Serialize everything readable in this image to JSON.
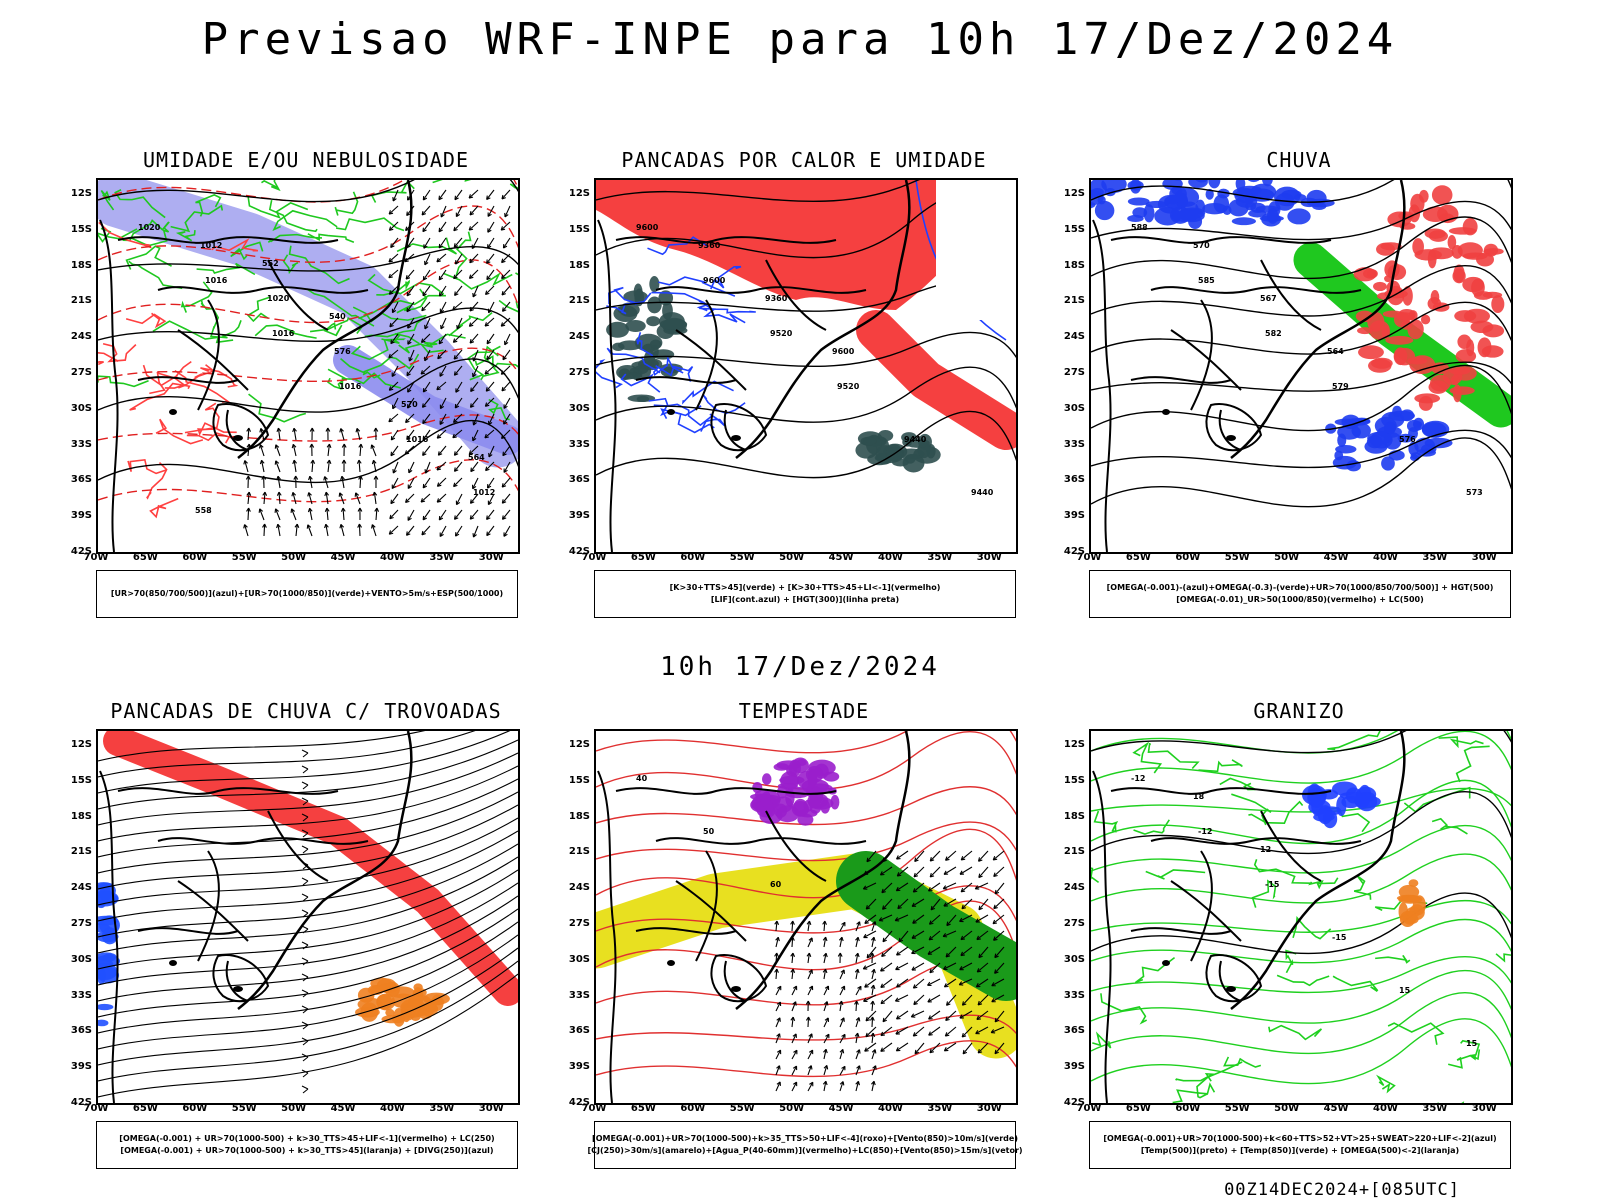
{
  "title": "Previsao WRF-INPE  para 10h 17/Dez/2024",
  "subtitle": "10h 17/Dez/2024",
  "footer": "00Z14DEC2024+[085UTC]",
  "axes": {
    "lat_labels": [
      "12S",
      "15S",
      "18S",
      "21S",
      "24S",
      "27S",
      "30S",
      "33S",
      "36S",
      "39S",
      "42S"
    ],
    "lon_labels": [
      "70W",
      "65W",
      "60W",
      "55W",
      "50W",
      "45W",
      "40W",
      "35W",
      "30W"
    ]
  },
  "panels": [
    {
      "id": "umidade",
      "title": "UMIDADE E/OU NEBULOSIDADE",
      "legend": [
        "[UR>70(850/700/500)](azul)+[UR>70(1000/850)](verde)+VENTO>5m/s+ESP(500/1000)"
      ],
      "fields": [
        "blue",
        "green",
        "redlines",
        "vectors"
      ],
      "contour_values": [
        "1020",
        "1016",
        "1016",
        "1016",
        "1016",
        "1012",
        "1012",
        "1020",
        "576",
        "570",
        "564",
        "558",
        "552",
        "540"
      ]
    },
    {
      "id": "pancadas-calor",
      "title": "PANCADAS POR CALOR E UMIDADE",
      "legend": [
        "[K>30+TTS>45](verde) + [K>30+TTS>45+LI<-1](vermelho)",
        "[LIF](cont.azul) + [HGT(300)](linha preta)"
      ],
      "fields": [
        "redfill",
        "darkgreen",
        "bluelines",
        "blacklines"
      ],
      "contour_values": [
        "9600",
        "9600",
        "9520",
        "9520",
        "9440",
        "9440",
        "9360",
        "9360",
        "9600"
      ]
    },
    {
      "id": "chuva",
      "title": "CHUVA",
      "legend": [
        "[OMEGA(-0.001)-(azul)+OMEGA(-0.3)-(verde)+UR>70(1000/850/700/500)] + HGT(500)",
        "[OMEGA(-0.01)_UR>50(1000/850)(vermelho) + LC(500)"
      ],
      "fields": [
        "blue",
        "green",
        "redfill",
        "blacklines"
      ],
      "contour_values": [
        "588",
        "585",
        "582",
        "579",
        "576",
        "573",
        "570",
        "567",
        "564"
      ]
    },
    {
      "id": "pancadas-trovoadas",
      "title": "PANCADAS DE CHUVA C/ TROVOADAS",
      "legend": [
        "[OMEGA(-0.001) + UR>70(1000-500) + k>30_TTS>45+LIF<-1](vermelho) + LC(250)",
        "[OMEGA(-0.001) + UR>70(1000-500) + k>30_TTS>45](laranja) + [DIVG(250)](azul)"
      ],
      "fields": [
        "redfill",
        "orange",
        "blue",
        "streamlines"
      ],
      "contour_values": []
    },
    {
      "id": "tempestade",
      "title": "TEMPESTADE",
      "legend": [
        "[OMEGA(-0.001)+UR>70(1000-500)+k>35_TTS>50+LIF<-4](roxo)+[Vento(850)>10m/s](verde)",
        "[CJ(250)>30m/s](amarelo)+[Agua_P(40-60mm)](vermelho)+LC(850)+[Vento(850)>15m/s](vetor)"
      ],
      "fields": [
        "yellow",
        "redlines",
        "purple",
        "green",
        "vectors"
      ],
      "contour_values": [
        "40",
        "50",
        "60"
      ]
    },
    {
      "id": "granizo",
      "title": "GRANIZO",
      "legend": [
        "[OMEGA(-0.001)+UR>70(1000-500)+k<60+TTS>52+VT>25+SWEAT>220+LIF<-2](azul)",
        "[Temp(500)](preto) + [Temp(850)](verde) + [OMEGA(500)<-2](laranja)"
      ],
      "fields": [
        "greenlines",
        "orange",
        "blue"
      ],
      "contour_values": [
        "-12",
        "-12",
        "-15",
        "-15",
        "15",
        "15",
        "18",
        "12"
      ]
    }
  ]
}
